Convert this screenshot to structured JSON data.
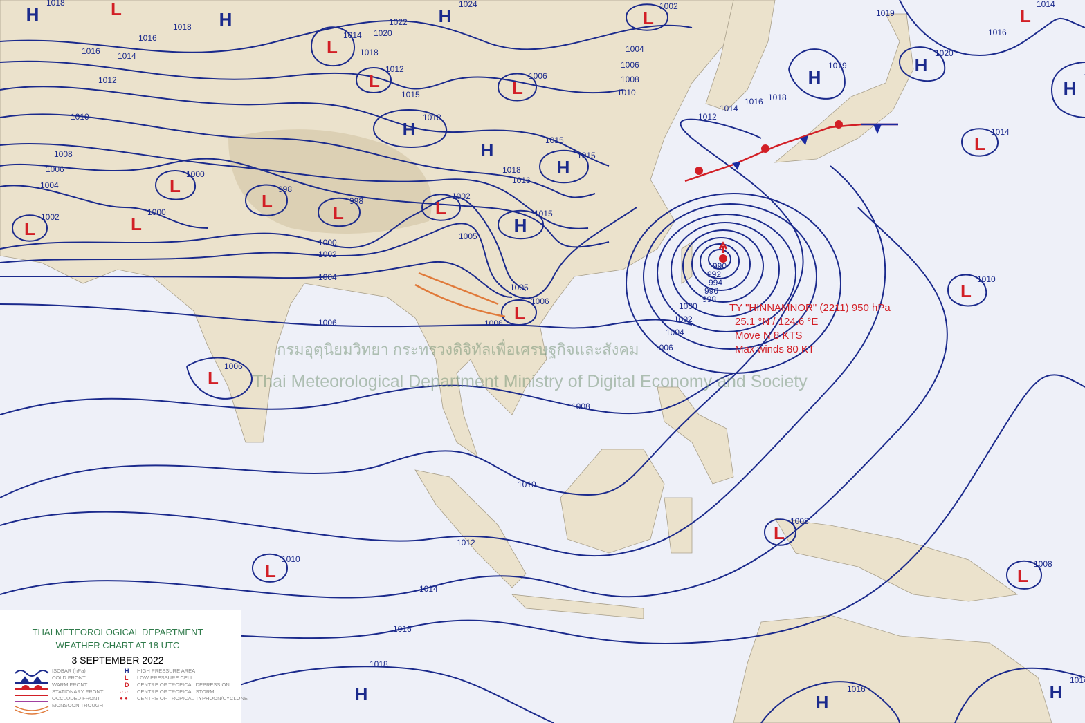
{
  "legend": {
    "title": "THAI METEOROLOGICAL DEPARTMENT",
    "subtitle": "WEATHER CHART AT   18  UTC",
    "date": "3 SEPTEMBER 2022",
    "left_items": [
      "ISOBAR (hPa)",
      "COLD FRONT",
      "WARM FRONT",
      "STATIONARY FRONT",
      "OCCLUDED FRONT",
      "MONSOON TROUGH"
    ],
    "right_symbols": [
      "H",
      "L",
      "D"
    ],
    "right_items": [
      "HIGH PRESSURE AREA",
      "LOW PRESSURE CELL",
      "CENTRE OF TROPICAL DEPRESSION",
      "CENTRE OF TROPICAL STORM",
      "CENTRE OF TROPICAL TYPHOON/CYCLONE"
    ]
  },
  "typhoon": {
    "line1": "TY \"HINNAMNOR\" (2211) 950 hPa",
    "line2": "25.1 °N / 124.6 °E",
    "line3": "Move N 8 KTS",
    "line4": "Max winds 80 KT"
  },
  "watermark": {
    "thai": "กรมอุตุนิยมวิทยา กระทรวงดิจิทัลเพื่อเศรษฐกิจและสังคม",
    "english": "Thai Meteorological Department Ministry of Digital Economy and Society"
  },
  "colors": {
    "high": "#1b2a8c",
    "low": "#d21f26",
    "isobar": "#1b2a8c",
    "land": "#ebe2cc",
    "sea": "#eef0f8",
    "monsoon_trough": "#e07a3a"
  },
  "pressure_centers": [
    {
      "type": "H",
      "label": "1018"
    },
    {
      "type": "L",
      "label": "1014"
    },
    {
      "type": "H",
      "label": ""
    },
    {
      "type": "L",
      "label": "1014"
    },
    {
      "type": "H",
      "label": "1024"
    },
    {
      "type": "L",
      "label": "1002"
    },
    {
      "type": "L",
      "label": "1014"
    },
    {
      "type": "H",
      "label": "1020"
    },
    {
      "type": "H",
      "label": "1019"
    },
    {
      "type": "H",
      "label": "1018"
    },
    {
      "type": "L",
      "label": "1012"
    },
    {
      "type": "L",
      "label": "1006"
    },
    {
      "type": "H",
      "label": "1018"
    },
    {
      "type": "H",
      "label": ""
    },
    {
      "type": "H",
      "label": "1015"
    },
    {
      "type": "L",
      "label": "1014"
    },
    {
      "type": "L",
      "label": "1000"
    },
    {
      "type": "L",
      "label": "998"
    },
    {
      "type": "L",
      "label": "998"
    },
    {
      "type": "L",
      "label": "1002"
    },
    {
      "type": "L",
      "label": "1000"
    },
    {
      "type": "L",
      "label": "1002"
    },
    {
      "type": "H",
      "label": "1015"
    },
    {
      "type": "L",
      "label": "1006"
    },
    {
      "type": "L",
      "label": "1010"
    },
    {
      "type": "L",
      "label": "1006"
    },
    {
      "type": "L",
      "label": "1010"
    },
    {
      "type": "L",
      "label": "1008"
    },
    {
      "type": "L",
      "label": "1008"
    },
    {
      "type": "H",
      "label": ""
    },
    {
      "type": "H",
      "label": ""
    },
    {
      "type": "H",
      "label": "1014"
    }
  ],
  "isobar_labels": [
    "1016",
    "1012",
    "1010",
    "1008",
    "1006",
    "1004",
    "1016",
    "1018",
    "1014",
    "1020",
    "1022",
    "1018",
    "1015",
    "1004",
    "1006",
    "1008",
    "1010",
    "1012",
    "1014",
    "1016",
    "1018",
    "1019",
    "1016",
    "1018",
    "1016",
    "1000",
    "1002",
    "1004",
    "1005",
    "1005",
    "1006",
    "1006",
    "1008",
    "1010",
    "1012",
    "1014",
    "1016",
    "1018",
    "1016",
    "1000",
    "1002",
    "1004",
    "1006",
    "990",
    "992",
    "994",
    "996",
    "998",
    "1015"
  ]
}
